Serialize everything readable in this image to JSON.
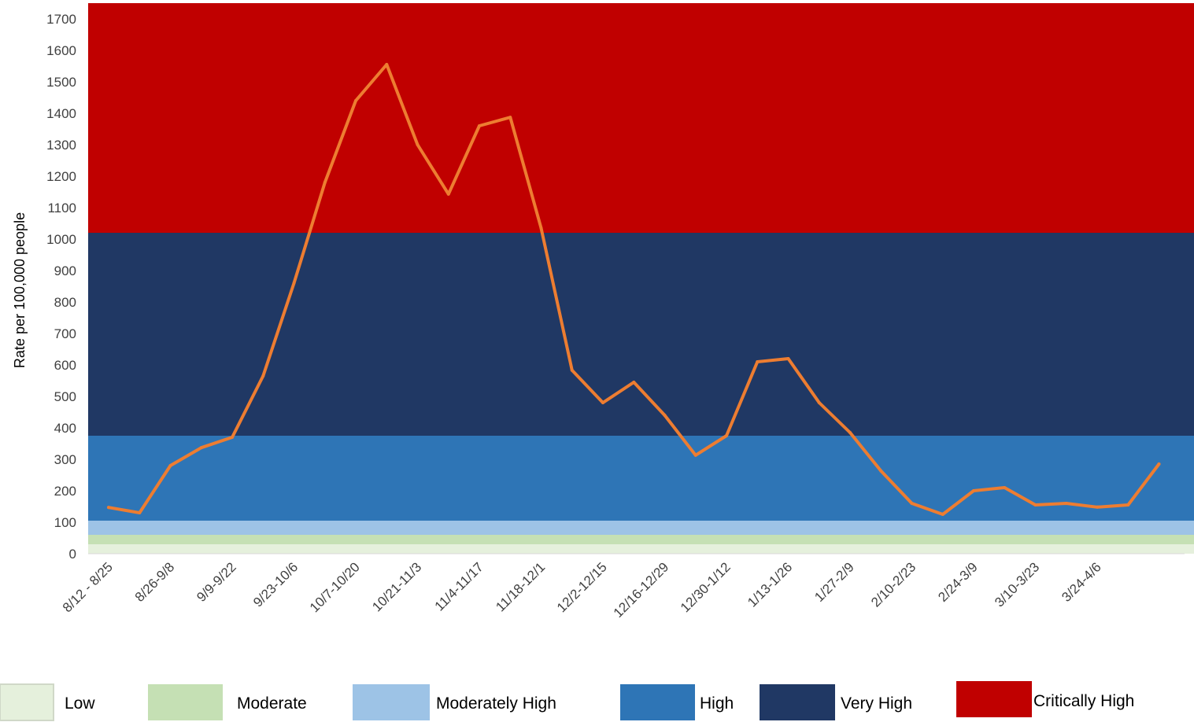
{
  "chart_data": {
    "type": "line",
    "ylabel": "Rate per 100,000 people",
    "xlabel": "",
    "title": "",
    "ylim": [
      0,
      1750
    ],
    "y_ticks": [
      0,
      100,
      200,
      300,
      400,
      500,
      600,
      700,
      800,
      900,
      1000,
      1100,
      1200,
      1300,
      1400,
      1500,
      1600,
      1700
    ],
    "x_tick_labels": [
      "8/12 - 8/25",
      "8/26-9/8",
      "9/9-9/22",
      "9/23-10/6",
      "10/7-10/20",
      "10/21-11/3",
      "11/4-11/17",
      "11/18-12/1",
      "12/2-12/15",
      "12/16-12/29",
      "12/30-1/12",
      "1/13-1/26",
      "1/27-2/9",
      "2/10-2/23",
      "2/24-3/9",
      "3/10-3/23",
      "3/24-4/6"
    ],
    "series": [
      {
        "color": "#ED7D31",
        "values": [
          147,
          130,
          280,
          337,
          370,
          565,
          860,
          1180,
          1440,
          1555,
          1300,
          1143,
          1360,
          1387,
          1035,
          583,
          480,
          545,
          440,
          313,
          375,
          610,
          620,
          480,
          385,
          263,
          160,
          125,
          200,
          210,
          155,
          160,
          148,
          155,
          285
        ]
      }
    ],
    "bands": [
      {
        "name": "Low",
        "from": 0,
        "to": 30,
        "color": "#E5F0DC"
      },
      {
        "name": "Moderate",
        "from": 30,
        "to": 60,
        "color": "#C5E0B4"
      },
      {
        "name": "Moderately High",
        "from": 60,
        "to": 105,
        "color": "#9DC3E6"
      },
      {
        "name": "High",
        "from": 105,
        "to": 375,
        "color": "#2E75B6"
      },
      {
        "name": "Very High",
        "from": 375,
        "to": 1020,
        "color": "#203864"
      },
      {
        "name": "Critically High",
        "from": 1020,
        "to": 1750,
        "color": "#C00000"
      }
    ],
    "grid": false,
    "legend_position": "bottom"
  }
}
